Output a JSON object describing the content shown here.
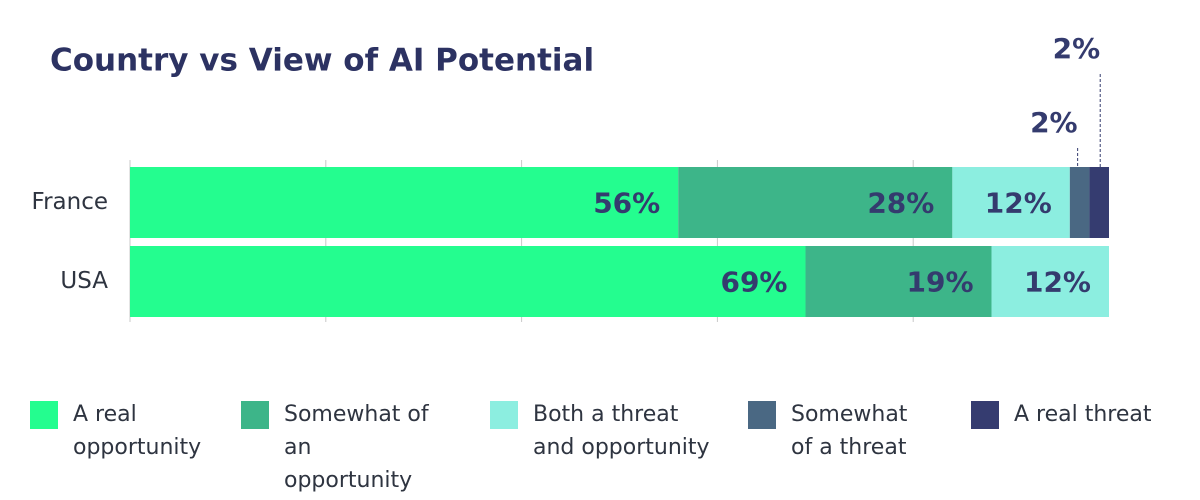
{
  "chart_data": {
    "type": "stacked-bar-horizontal",
    "title": "Country vs View of AI Potential",
    "categories": [
      "France",
      "USA"
    ],
    "series": [
      {
        "name": "A real opportunity",
        "color": "#24fd8f",
        "values": [
          56,
          69
        ],
        "value_labels": [
          "56%",
          "69%"
        ]
      },
      {
        "name": "Somewhat of an opportunity",
        "color": "#3db589",
        "values": [
          28,
          19
        ],
        "value_labels": [
          "28%",
          "19%"
        ]
      },
      {
        "name": "Both a threat and opportunity",
        "color": "#8ceee0",
        "values": [
          12,
          12
        ],
        "value_labels": [
          "12%",
          "12%"
        ]
      },
      {
        "name": "Somewhat of a threat",
        "color": "#4a6883",
        "values": [
          2,
          null
        ],
        "value_labels": [
          "2%",
          null
        ]
      },
      {
        "name": "A real threat",
        "color": "#353c70",
        "values": [
          2,
          null
        ],
        "value_labels": [
          "2%",
          null
        ]
      }
    ],
    "xlim": [
      0,
      100
    ],
    "xticks": [
      20,
      40,
      60,
      80
    ],
    "grid": true
  }
}
